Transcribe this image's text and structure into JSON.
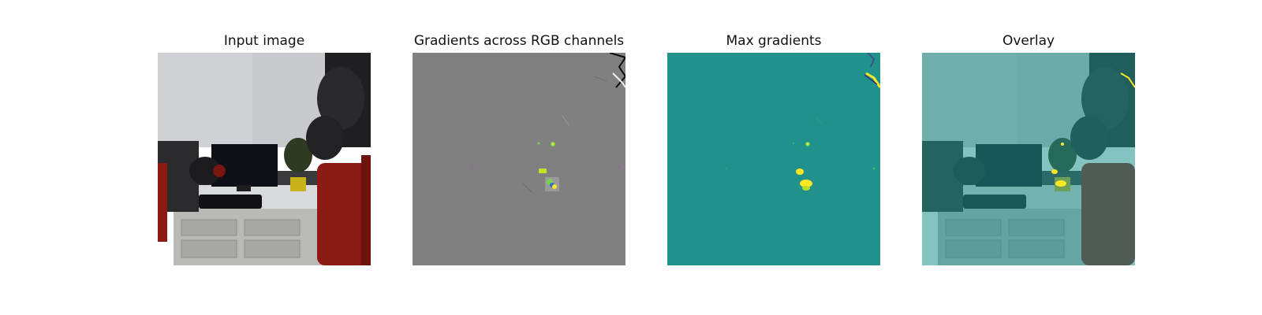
{
  "figure": {
    "panels": [
      {
        "title": "Input image"
      },
      {
        "title": "Gradients across RGB channels"
      },
      {
        "title": "Max gradients"
      },
      {
        "title": "Overlay"
      }
    ]
  },
  "colors": {
    "background": "#ffffff",
    "gradient_gray": "#808080",
    "viridis_teal": "#21918c",
    "viridis_yellow": "#fde725",
    "viridis_green": "#7ad151",
    "robot_red": "#8b1a14",
    "robot_black": "#1b1b1e",
    "wall": "#c9cbcf"
  }
}
